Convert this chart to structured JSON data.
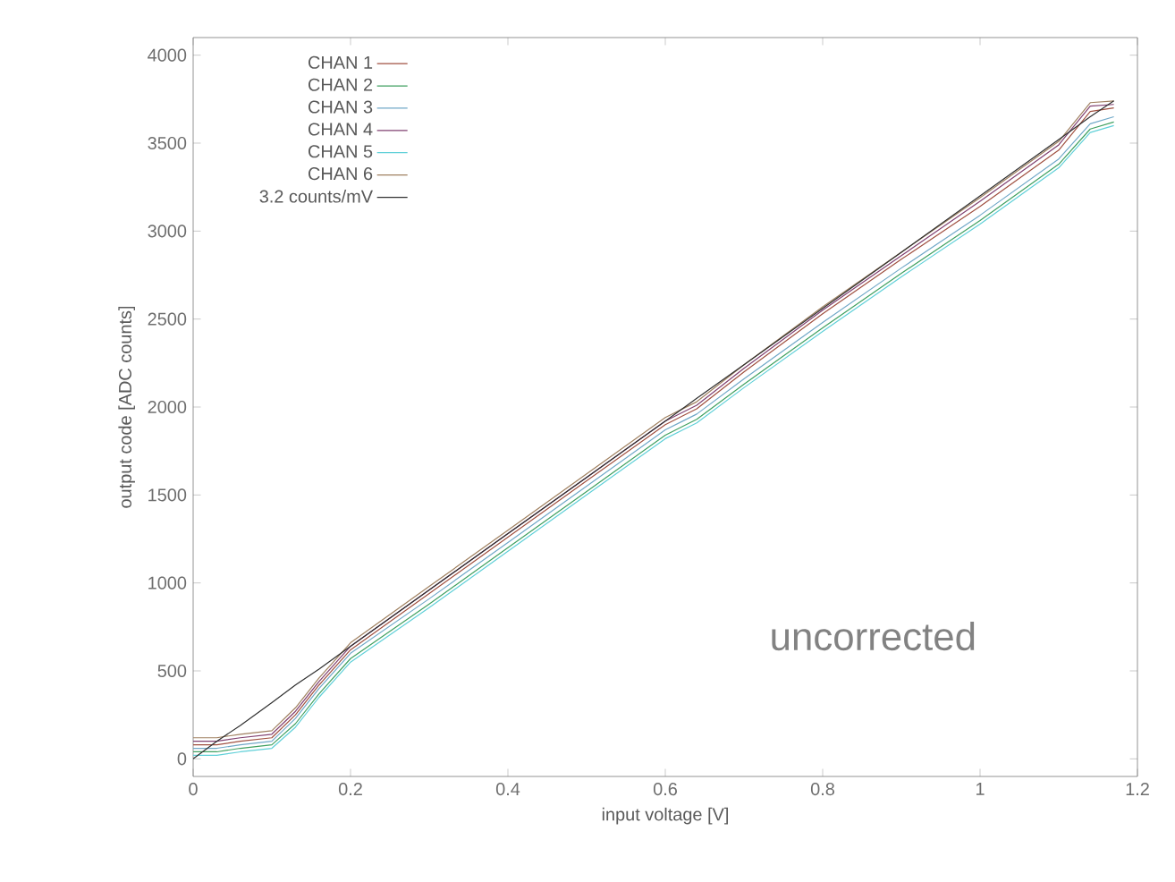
{
  "chart_data": {
    "type": "line",
    "xlabel": "input voltage [V]",
    "ylabel": "output code [ADC counts]",
    "x": [
      0,
      0.03,
      0.06,
      0.1,
      0.13,
      0.16,
      0.2,
      0.3,
      0.4,
      0.5,
      0.6,
      0.64,
      0.7,
      0.8,
      0.9,
      1.0,
      1.1,
      1.14,
      1.17
    ],
    "series": [
      {
        "name": "CHAN 1",
        "color": "#a05040",
        "values": [
          80,
          80,
          100,
          120,
          250,
          420,
          620,
          940,
          1260,
          1580,
          1900,
          1990,
          2200,
          2530,
          2840,
          3140,
          3460,
          3680,
          3700
        ]
      },
      {
        "name": "CHAN 2",
        "color": "#40a060",
        "values": [
          40,
          40,
          60,
          80,
          200,
          370,
          570,
          880,
          1200,
          1520,
          1840,
          1930,
          2130,
          2450,
          2760,
          3060,
          3380,
          3580,
          3620
        ]
      },
      {
        "name": "CHAN 3",
        "color": "#70a8c8",
        "values": [
          60,
          60,
          80,
          100,
          230,
          400,
          600,
          910,
          1230,
          1550,
          1870,
          1960,
          2160,
          2480,
          2790,
          3090,
          3410,
          3610,
          3650
        ]
      },
      {
        "name": "CHAN 4",
        "color": "#804070",
        "values": [
          100,
          100,
          120,
          140,
          270,
          440,
          640,
          960,
          1280,
          1600,
          1920,
          2010,
          2220,
          2550,
          2860,
          3170,
          3490,
          3710,
          3720
        ]
      },
      {
        "name": "CHAN 5",
        "color": "#60d0d8",
        "values": [
          20,
          20,
          40,
          60,
          180,
          350,
          550,
          860,
          1180,
          1500,
          1820,
          1910,
          2110,
          2430,
          2740,
          3040,
          3360,
          3560,
          3600
        ]
      },
      {
        "name": "CHAN 6",
        "color": "#a08060",
        "values": [
          120,
          120,
          140,
          160,
          290,
          460,
          660,
          980,
          1300,
          1620,
          1940,
          2030,
          2240,
          2570,
          2880,
          3190,
          3510,
          3730,
          3740
        ]
      },
      {
        "name": "3.2 counts/mV",
        "color": "#303030",
        "values": [
          0,
          100,
          190,
          320,
          420,
          510,
          640,
          960,
          1280,
          1600,
          1920,
          2050,
          2240,
          2560,
          2880,
          3200,
          3520,
          3650,
          3740
        ]
      }
    ],
    "xlim": [
      0,
      1.2
    ],
    "ylim": [
      -100,
      4100
    ],
    "xticks": [
      0,
      0.2,
      0.4,
      0.6,
      0.8,
      1,
      1.2
    ],
    "yticks": [
      0,
      500,
      1000,
      1500,
      2000,
      2500,
      3000,
      3500,
      4000
    ],
    "legend": "top left",
    "grid": false,
    "marker": "none",
    "line_style": "solid",
    "annotations": [
      "uncorrected"
    ]
  }
}
